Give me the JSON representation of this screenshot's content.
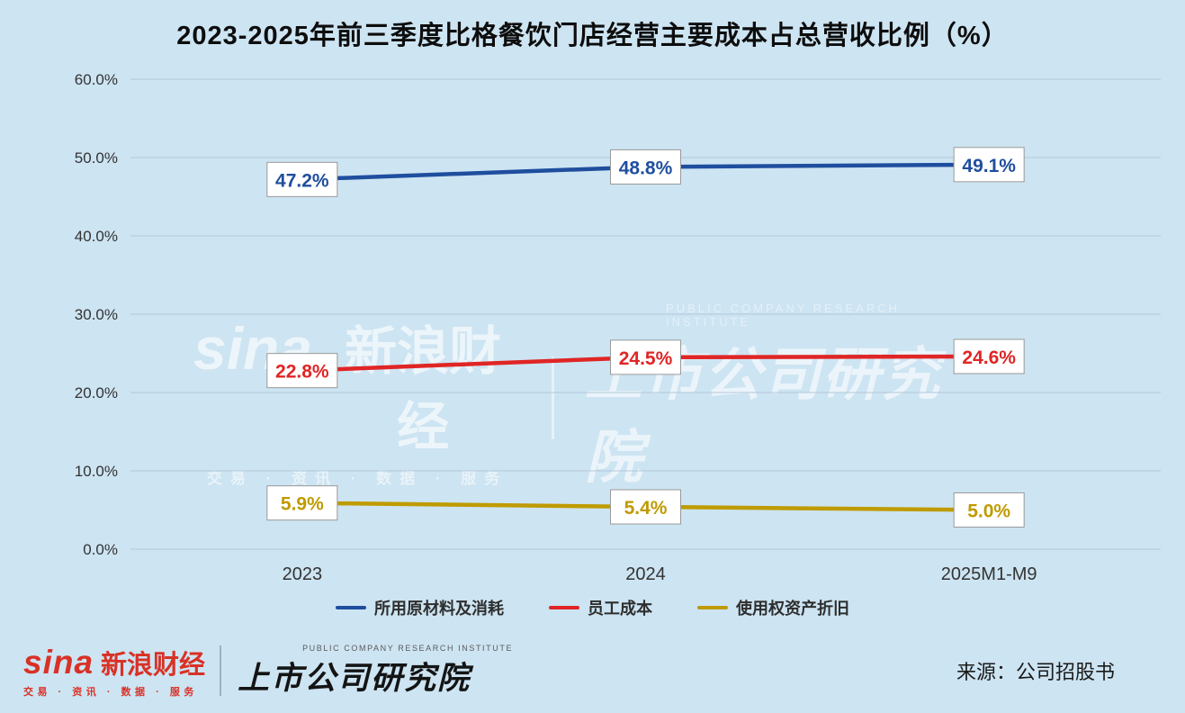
{
  "title": "2023-2025年前三季度比格餐饮门店经营主要成本占总营收比例（%）",
  "chart_data": {
    "type": "line",
    "categories": [
      "2023",
      "2024",
      "2025M1-M9"
    ],
    "series": [
      {
        "name": "所用原材料及消耗",
        "values": [
          47.2,
          48.8,
          49.1
        ],
        "color": "#1f4e9e"
      },
      {
        "name": "员工成本",
        "values": [
          22.8,
          24.5,
          24.6
        ],
        "color": "#e02525"
      },
      {
        "name": "使用权资产折旧",
        "values": [
          5.9,
          5.4,
          5.0
        ],
        "color": "#bf9b00"
      }
    ],
    "ylim": [
      0,
      60
    ],
    "ytick_step": 10,
    "ytick_labels": [
      "0.0%",
      "10.0%",
      "20.0%",
      "30.0%",
      "40.0%",
      "50.0%",
      "60.0%"
    ],
    "grid": true,
    "data_labels": true,
    "legend_position": "bottom",
    "background": "#cde4f2",
    "grid_color": "#b3c9d9"
  },
  "watermark": {
    "sina_logo": "sina",
    "sina_name": "新浪财经",
    "sina_tagline": "交易 · 资讯 · 数据 · 服务",
    "institute_en": "PUBLIC COMPANY RESEARCH INSTITUTE",
    "institute_name": "上市公司研究院"
  },
  "footer": {
    "sina_logo": "sina",
    "sina_name": "新浪财经",
    "sina_tagline": "交易 · 资讯 · 数据 · 服务",
    "institute_en": "PUBLIC COMPANY RESEARCH INSTITUTE",
    "institute_name": "上市公司研究院",
    "source": "来源：公司招股书"
  }
}
